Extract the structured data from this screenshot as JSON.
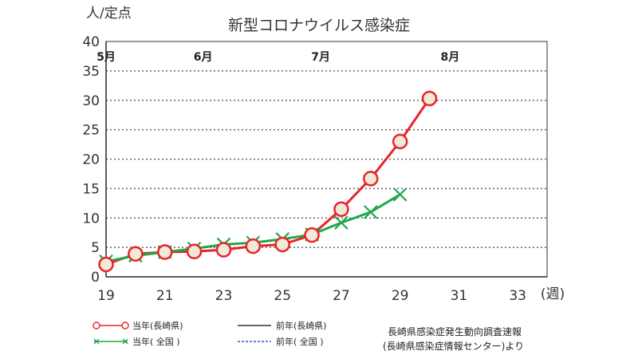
{
  "chart_data": {
    "type": "line",
    "title": "新型コロナウイルス感染症",
    "ylabel": "人/定点",
    "xlabel": "(週)",
    "xlim": [
      19,
      34
    ],
    "ylim": [
      0,
      40
    ],
    "x_ticks": [
      19,
      21,
      23,
      25,
      27,
      29,
      31,
      33
    ],
    "y_ticks": [
      0,
      5,
      10,
      15,
      20,
      25,
      30,
      35,
      40
    ],
    "grid": true,
    "month_labels": [
      {
        "label": "5月",
        "x": 19
      },
      {
        "label": "6月",
        "x": 22.3
      },
      {
        "label": "7月",
        "x": 26.3
      },
      {
        "label": "8月",
        "x": 30.7
      }
    ],
    "series": [
      {
        "name": "当年(長崎県)",
        "color": "#e8242a",
        "marker": "circle",
        "x": [
          19,
          20,
          21,
          22,
          23,
          24,
          25,
          26,
          27,
          28,
          29,
          30
        ],
        "y": [
          2.1,
          3.9,
          4.2,
          4.3,
          4.6,
          5.2,
          5.5,
          7.1,
          11.5,
          16.7,
          23.0,
          30.3
        ]
      },
      {
        "name": "当年( 全国 )",
        "color": "#1ea84a",
        "marker": "x",
        "x": [
          19,
          20,
          21,
          22,
          23,
          24,
          25,
          26,
          27,
          28,
          29
        ],
        "y": [
          2.6,
          3.6,
          4.2,
          4.8,
          5.5,
          5.8,
          6.4,
          7.2,
          9.2,
          11.0,
          14.0
        ]
      }
    ],
    "legend": {
      "placement": "bottom",
      "entries": [
        {
          "label": "当年(長崎県)",
          "style": "red-circle-line"
        },
        {
          "label": "前年(長崎県)",
          "style": "black-solid"
        },
        {
          "label": "当年( 全国 )",
          "style": "green-x-line"
        },
        {
          "label": "前年( 全国 )",
          "style": "blue-dashed"
        }
      ]
    },
    "source_lines": [
      "長崎県感染症発生動向調査速報",
      "(長崎県感染症情報センター)より"
    ]
  }
}
